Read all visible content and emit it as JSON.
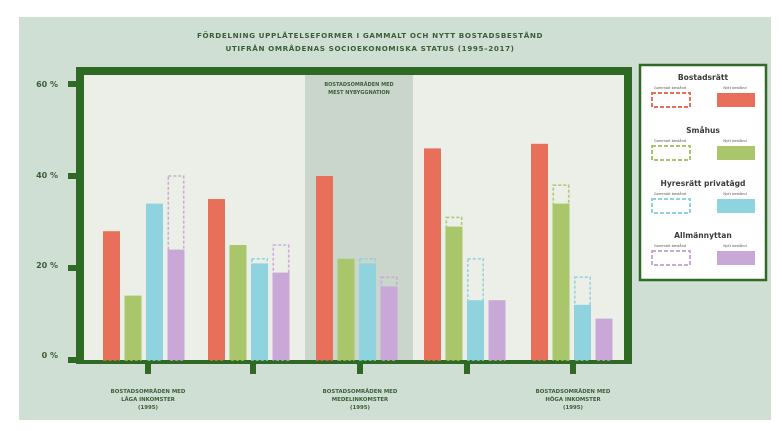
{
  "chart_data": {
    "type": "bar",
    "title_line1": "FÖRDELNING UPPLÅTELSEFORMER I GAMMALT OCH NYTT BOSTADSBESTÅND",
    "title_line2": "UTIFRÅN OMRÅDENAS SOCIOEKONOMISKA STATUS (1995–2017)",
    "y_ticks": [
      "60 %",
      "40 %",
      "20 %",
      "0 %"
    ],
    "ylim": [
      0,
      60
    ],
    "unit": "%",
    "highlight_label": "BOSTADSOMRÅDEN MED MEST NYBYGGNATION",
    "category_labels": [
      {
        "lines": [
          "BOSTADSOMRÅDEN MED",
          "LÅGA INKOMSTER",
          "(1995)"
        ]
      },
      {
        "lines": [
          "BOSTADSOMRÅDEN MED",
          "MEDELINKOMSTER",
          "(1995)"
        ]
      },
      {
        "lines": [
          "BOSTADSOMRÅDEN MED",
          "HÖGA INKOMSTER",
          "(1995)"
        ]
      }
    ],
    "groups": 5,
    "series": [
      {
        "name": "Bostadsrätt",
        "color": "#e8705a",
        "new": [
          28,
          35,
          40,
          46,
          47
        ],
        "old": [
          20,
          29,
          35,
          38,
          42
        ]
      },
      {
        "name": "Småhus",
        "color": "#a9c76a",
        "new": [
          14,
          25,
          22,
          29,
          34
        ],
        "old": [
          8,
          18,
          20,
          31,
          38
        ]
      },
      {
        "name": "Hyresrätt privatägd",
        "color": "#8fd3df",
        "new": [
          34,
          21,
          21,
          13,
          12
        ],
        "old": [
          30,
          22,
          22,
          22,
          18
        ]
      },
      {
        "name": "Allmännyttan",
        "color": "#c9a8d8",
        "new": [
          24,
          19,
          16,
          13,
          9
        ],
        "old": [
          40,
          25,
          18,
          8,
          5
        ]
      }
    ],
    "legend": {
      "old_label": "Gammalt bestånd",
      "new_label": "Nytt bestånd"
    },
    "colors": {
      "background": "#cfdfd3",
      "frame": "#2f6a25",
      "plot_bg": "#ecefe7",
      "highlight": "#cad6cc",
      "title": "#3b5e39"
    }
  }
}
